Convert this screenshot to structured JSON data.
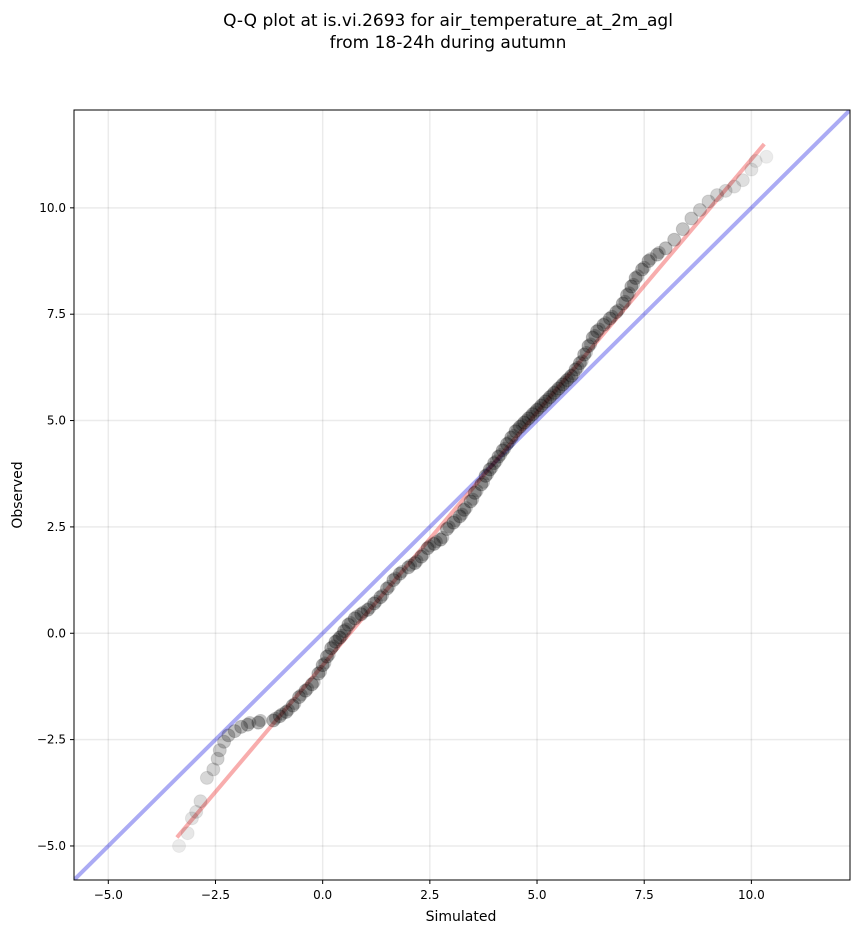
{
  "chart_data": {
    "type": "scatter",
    "title_line1": "Q-Q plot at is.vi.2693 for air_temperature_at_2m_agl",
    "title_line2": "from 18-24h during autumn",
    "xlabel": "Simulated",
    "ylabel": "Observed",
    "xlim": [
      -5.8,
      12.3
    ],
    "ylim": [
      -5.8,
      12.3
    ],
    "xticks": [
      -5.0,
      -2.5,
      0.0,
      2.5,
      5.0,
      7.5,
      10.0
    ],
    "yticks": [
      -5.0,
      -2.5,
      0.0,
      2.5,
      5.0,
      7.5,
      10.0
    ],
    "xtick_labels": [
      "−5.0",
      "−2.5",
      "0.0",
      "2.5",
      "5.0",
      "7.5",
      "10.0"
    ],
    "ytick_labels": [
      "−5.0",
      "−2.5",
      "0.0",
      "2.5",
      "5.0",
      "7.5",
      "10.0"
    ],
    "grid": true,
    "reference_line": {
      "x": [
        -5.8,
        12.3
      ],
      "y": [
        -5.8,
        12.3
      ],
      "color": "#0000dd"
    },
    "fit_line": {
      "x": [
        -3.4,
        10.3
      ],
      "y": [
        -4.8,
        11.5
      ],
      "color": "#ee3333"
    },
    "marker_color": "#000000",
    "series": [
      {
        "points": [
          [
            -3.35,
            -5.0
          ],
          [
            -3.15,
            -4.7
          ],
          [
            -3.05,
            -4.35
          ],
          [
            -2.95,
            -4.2
          ],
          [
            -2.85,
            -3.95
          ],
          [
            -2.7,
            -3.4
          ],
          [
            -2.55,
            -3.2
          ],
          [
            -2.45,
            -2.95
          ],
          [
            -2.4,
            -2.75
          ],
          [
            -2.3,
            -2.55
          ],
          [
            -2.2,
            -2.4
          ],
          [
            -2.05,
            -2.3
          ],
          [
            -1.9,
            -2.2
          ],
          [
            -1.75,
            -2.15
          ],
          [
            -1.5,
            -2.1
          ],
          [
            -1.15,
            -2.05
          ],
          [
            -1.0,
            -1.95
          ],
          [
            -0.85,
            -1.85
          ],
          [
            -0.7,
            -1.7
          ],
          [
            -0.55,
            -1.5
          ],
          [
            -0.4,
            -1.35
          ],
          [
            -0.25,
            -1.2
          ],
          [
            -0.1,
            -0.95
          ],
          [
            0.0,
            -0.75
          ],
          [
            0.1,
            -0.55
          ],
          [
            0.2,
            -0.35
          ],
          [
            0.3,
            -0.2
          ],
          [
            0.4,
            -0.1
          ],
          [
            0.5,
            0.05
          ],
          [
            0.6,
            0.2
          ],
          [
            0.75,
            0.35
          ],
          [
            0.9,
            0.45
          ],
          [
            1.05,
            0.55
          ],
          [
            1.2,
            0.7
          ],
          [
            1.35,
            0.85
          ],
          [
            1.5,
            1.05
          ],
          [
            1.65,
            1.25
          ],
          [
            1.8,
            1.4
          ],
          [
            2.0,
            1.55
          ],
          [
            2.15,
            1.65
          ],
          [
            2.3,
            1.8
          ],
          [
            2.45,
            2.0
          ],
          [
            2.6,
            2.1
          ],
          [
            2.75,
            2.2
          ],
          [
            2.9,
            2.45
          ],
          [
            3.05,
            2.6
          ],
          [
            3.2,
            2.75
          ],
          [
            3.3,
            2.9
          ],
          [
            3.45,
            3.1
          ],
          [
            3.55,
            3.3
          ],
          [
            3.7,
            3.5
          ],
          [
            3.8,
            3.7
          ],
          [
            3.9,
            3.85
          ],
          [
            4.0,
            4.0
          ],
          [
            4.1,
            4.15
          ],
          [
            4.2,
            4.3
          ],
          [
            4.3,
            4.45
          ],
          [
            4.4,
            4.6
          ],
          [
            4.5,
            4.75
          ],
          [
            4.6,
            4.85
          ],
          [
            4.7,
            4.95
          ],
          [
            4.8,
            5.05
          ],
          [
            4.9,
            5.15
          ],
          [
            5.0,
            5.25
          ],
          [
            5.1,
            5.35
          ],
          [
            5.2,
            5.45
          ],
          [
            5.3,
            5.55
          ],
          [
            5.4,
            5.65
          ],
          [
            5.5,
            5.75
          ],
          [
            5.6,
            5.85
          ],
          [
            5.7,
            5.95
          ],
          [
            5.8,
            6.05
          ],
          [
            5.9,
            6.2
          ],
          [
            6.0,
            6.35
          ],
          [
            6.1,
            6.55
          ],
          [
            6.2,
            6.75
          ],
          [
            6.3,
            6.95
          ],
          [
            6.4,
            7.1
          ],
          [
            6.55,
            7.25
          ],
          [
            6.7,
            7.4
          ],
          [
            6.85,
            7.55
          ],
          [
            7.0,
            7.75
          ],
          [
            7.1,
            7.95
          ],
          [
            7.2,
            8.15
          ],
          [
            7.3,
            8.35
          ],
          [
            7.45,
            8.55
          ],
          [
            7.6,
            8.75
          ],
          [
            7.8,
            8.9
          ],
          [
            8.0,
            9.05
          ],
          [
            8.2,
            9.25
          ],
          [
            8.4,
            9.5
          ],
          [
            8.6,
            9.75
          ],
          [
            8.8,
            9.95
          ],
          [
            9.0,
            10.15
          ],
          [
            9.2,
            10.3
          ],
          [
            9.4,
            10.4
          ],
          [
            9.6,
            10.5
          ],
          [
            9.8,
            10.65
          ],
          [
            10.0,
            10.9
          ],
          [
            10.1,
            11.1
          ],
          [
            10.35,
            11.2
          ]
        ]
      }
    ]
  }
}
